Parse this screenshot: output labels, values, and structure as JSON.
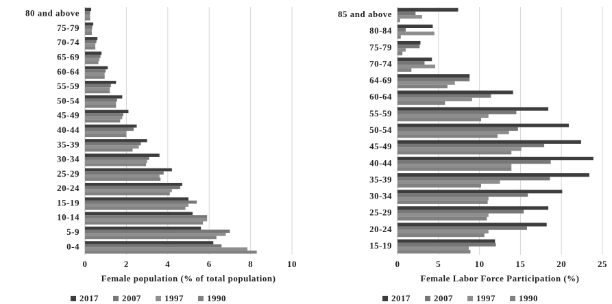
{
  "chart_data": [
    {
      "type": "hbar",
      "x_label": "Female population (% of total population)",
      "categories": [
        "0-4",
        "5-9",
        "10-14",
        "15-19",
        "20-24",
        "25-29",
        "30-34",
        "35-39",
        "40-44",
        "45-49",
        "50-54",
        "55-59",
        "60-64",
        "65-69",
        "70-74",
        "75-79",
        "80 and above"
      ],
      "series": [
        {
          "name": "2017",
          "color": "#3d3d3d",
          "values": [
            6.2,
            5.6,
            5.2,
            5.0,
            4.7,
            4.2,
            3.6,
            3.0,
            2.5,
            2.1,
            1.8,
            1.5,
            1.1,
            0.8,
            0.6,
            0.4,
            0.3
          ]
        },
        {
          "name": "2007",
          "color": "#777777",
          "values": [
            6.6,
            7.0,
            5.9,
            5.4,
            4.6,
            3.8,
            3.1,
            2.7,
            2.35,
            1.85,
            1.55,
            1.25,
            1.0,
            0.75,
            0.55,
            0.35,
            0.25
          ]
        },
        {
          "name": "1997",
          "color": "#8e8e8e",
          "values": [
            7.85,
            6.8,
            5.9,
            5.0,
            4.2,
            3.6,
            3.0,
            2.6,
            2.0,
            1.8,
            1.5,
            1.2,
            0.95,
            0.7,
            0.5,
            0.33,
            0.25
          ]
        },
        {
          "name": "1990",
          "color": "#818181",
          "values": [
            8.3,
            6.35,
            5.7,
            4.85,
            4.1,
            3.65,
            2.95,
            2.3,
            2.0,
            1.7,
            1.5,
            1.2,
            0.95,
            0.65,
            0.5,
            0.33,
            0.25
          ]
        }
      ],
      "xlim": [
        0,
        10
      ],
      "xticks": [
        0,
        2,
        4,
        6,
        8,
        10
      ],
      "grid": true
    },
    {
      "type": "hbar",
      "x_label": "Female Labor Force Participation (%)",
      "categories": [
        "15-19",
        "20-24",
        "25-29",
        "30-34",
        "35-39",
        "40-44",
        "45-49",
        "50-54",
        "55-59",
        "60-64",
        "64-69",
        "70-74",
        "75-79",
        "80-84",
        "85 and above"
      ],
      "series": [
        {
          "name": "2017",
          "color": "#3d3d3d",
          "values": [
            11.9,
            18.2,
            18.4,
            20.1,
            23.4,
            23.9,
            22.4,
            20.9,
            18.4,
            14.1,
            8.8,
            4.2,
            2.8,
            4.3,
            7.4
          ]
        },
        {
          "name": "2007",
          "color": "#777777",
          "values": [
            12.0,
            15.8,
            15.4,
            15.9,
            18.6,
            18.7,
            17.9,
            14.7,
            14.5,
            11.4,
            8.8,
            3.3,
            2.7,
            1.0,
            2.2
          ]
        },
        {
          "name": "1997",
          "color": "#8e8e8e",
          "values": [
            8.7,
            11.1,
            11.1,
            11.1,
            12.5,
            13.9,
            15.1,
            13.6,
            11.1,
            9.1,
            7.0,
            4.6,
            1.0,
            4.5,
            3.0
          ]
        },
        {
          "name": "1990",
          "color": "#818181",
          "values": [
            8.9,
            10.6,
            10.9,
            11.0,
            10.2,
            13.9,
            13.9,
            12.2,
            10.2,
            5.8,
            6.1,
            1.7,
            0.6,
            0.4,
            0.3
          ]
        }
      ],
      "xlim": [
        0,
        25
      ],
      "xticks": [
        0,
        5,
        10,
        15,
        20,
        25
      ],
      "grid": true
    }
  ]
}
